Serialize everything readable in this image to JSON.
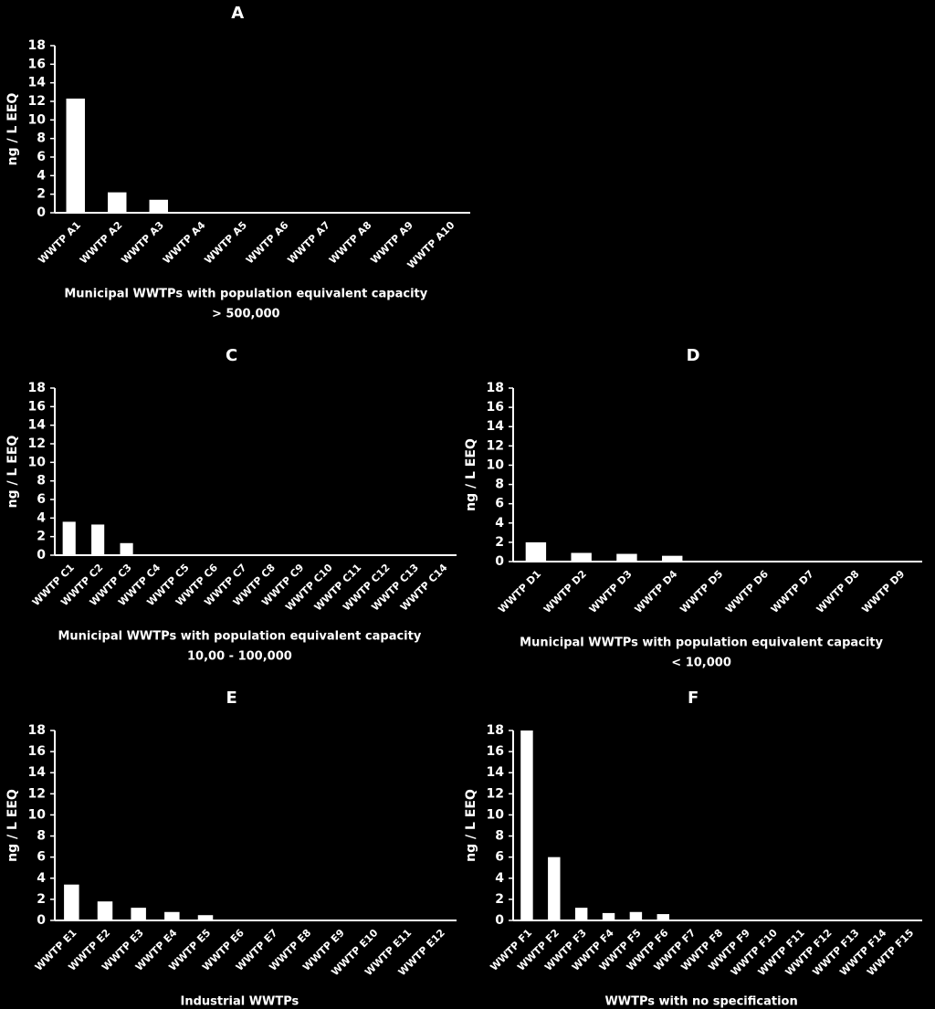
{
  "chart_data": [
    {
      "type": "bar",
      "title": "A",
      "ylabel": "ng / L EEQ",
      "xlabel": [
        "Municipal WWTPs with population equivalent capacity",
        "> 500,000"
      ],
      "categories": [
        "WWTP A1",
        "WWTP A2",
        "WWTP A3",
        "WWTP A4",
        "WWTP A5",
        "WWTP A6",
        "WWTP A7",
        "WWTP A8",
        "WWTP A9",
        "WWTP A10"
      ],
      "values": [
        12.3,
        2.2,
        1.4,
        0,
        0,
        0,
        0,
        0,
        0,
        0
      ],
      "color": "#ffffff",
      "ylim": [
        0,
        18
      ],
      "yticks": [
        0,
        2,
        4,
        6,
        8,
        10,
        12,
        14,
        16,
        18
      ]
    },
    {
      "type": "bar",
      "title": "C",
      "ylabel": "ng / L EEQ",
      "xlabel": [
        "Municipal WWTPs with population equivalent capacity",
        "10,00 - 100,000"
      ],
      "categories": [
        "WWTP C1",
        "WWTP C2",
        "WWTP C3",
        "WWTP C4",
        "WWTP C5",
        "WWTP C6",
        "WWTP C7",
        "WWTP C8",
        "WWTP C9",
        "WWTP C10",
        "WWTP C11",
        "WWTP C12",
        "WWTP C13",
        "WWTP C14"
      ],
      "values": [
        3.6,
        3.3,
        1.3,
        0,
        0,
        0,
        0,
        0,
        0,
        0,
        0,
        0,
        0,
        0
      ],
      "color": "#ffffff",
      "ylim": [
        0,
        18
      ],
      "yticks": [
        0,
        2,
        4,
        6,
        8,
        10,
        12,
        14,
        16,
        18
      ]
    },
    {
      "type": "bar",
      "title": "D",
      "ylabel": "ng / L EEQ",
      "xlabel": [
        "Municipal WWTPs with population equivalent capacity",
        "< 10,000"
      ],
      "categories": [
        "WWTP D1",
        "WWTP D2",
        "WWTP D3",
        "WWTP D4",
        "WWTP D5",
        "WWTP D6",
        "WWTP D7",
        "WWTP D8",
        "WWTP D9"
      ],
      "values": [
        2.0,
        0.9,
        0.8,
        0.6,
        0,
        0,
        0,
        0,
        0
      ],
      "color": "#ffffff",
      "ylim": [
        0,
        18
      ],
      "yticks": [
        0,
        2,
        4,
        6,
        8,
        10,
        12,
        14,
        16,
        18
      ]
    },
    {
      "type": "bar",
      "title": "E",
      "ylabel": "ng / L EEQ",
      "xlabel": [
        "Industrial  WWTPs"
      ],
      "categories": [
        "WWTP E1",
        "WWTP E2",
        "WWTP E3",
        "WWTP E4",
        "WWTP E5",
        "WWTP E6",
        "WWTP E7",
        "WWTP E8",
        "WWTP E9",
        "WWTP E10",
        "WWTP E11",
        "WWTP E12"
      ],
      "values": [
        3.4,
        1.8,
        1.2,
        0.8,
        0.5,
        0,
        0,
        0,
        0,
        0,
        0,
        0
      ],
      "color": "#ffffff",
      "ylim": [
        0,
        18
      ],
      "yticks": [
        0,
        2,
        4,
        6,
        8,
        10,
        12,
        14,
        16,
        18
      ]
    },
    {
      "type": "bar",
      "title": "F",
      "ylabel": "ng / L EEQ",
      "xlabel": [
        "WWTPs with no specification"
      ],
      "categories": [
        "WWTP F1",
        "WWTP F2",
        "WWTP F3",
        "WWTP F4",
        "WWTP F5",
        "WWTP F6",
        "WWTP F7",
        "WWTP F8",
        "WWTP F9",
        "WWTP F10",
        "WWTP F11",
        "WWTP F12",
        "WWTP F13",
        "WWTP F14",
        "WWTP F15"
      ],
      "values": [
        18,
        6,
        1.2,
        0.7,
        0.8,
        0.6,
        0,
        0,
        0,
        0,
        0,
        0,
        0,
        0,
        0
      ],
      "color": "#ffffff",
      "ylim": [
        0,
        18
      ],
      "yticks": [
        0,
        2,
        4,
        6,
        8,
        10,
        12,
        14,
        16,
        18
      ]
    }
  ]
}
